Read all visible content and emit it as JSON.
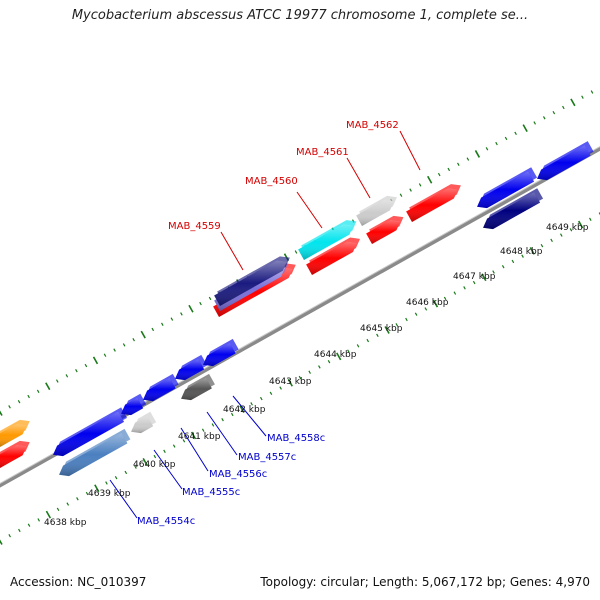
{
  "title": "Mycobacterium abscessus ATCC 19977 chromosome 1, complete se...",
  "footer": {
    "accession": "Accession: NC_010397",
    "summary": "Topology: circular; Length: 5,067,172 bp; Genes: 4,970"
  },
  "colors": {
    "backbone": "#8a8a8a",
    "tick": "#1a7a1a",
    "forward_label": "#d40000",
    "reverse_label": "#0000cc"
  },
  "kbp_labels": [
    "4638 kbp",
    "4639 kbp",
    "4640 kbp",
    "4641 kbp",
    "4642 kbp",
    "4643 kbp",
    "4644 kbp",
    "4645 kbp",
    "4646 kbp",
    "4647 kbp",
    "4648 kbp",
    "4649 kbp"
  ],
  "forward_labels": [
    "MAB_4559",
    "MAB_4560",
    "MAB_4561",
    "MAB_4562"
  ],
  "reverse_labels": [
    "MAB_4554c",
    "MAB_4555c",
    "MAB_4556c",
    "MAB_4557c",
    "MAB_4558c"
  ]
}
